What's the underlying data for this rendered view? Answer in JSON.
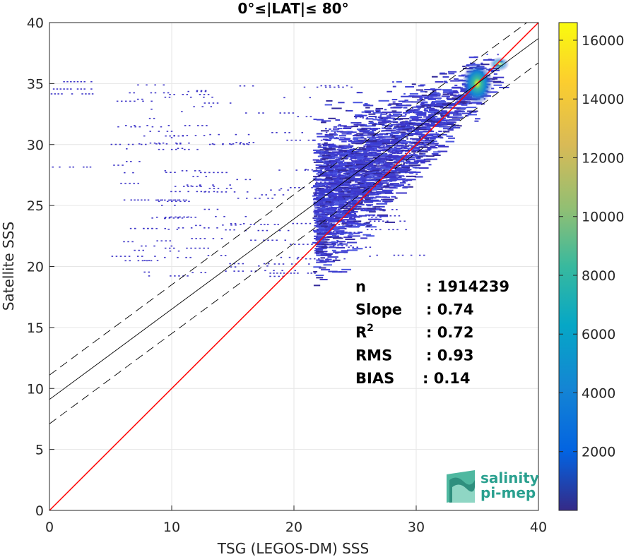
{
  "chart_data": {
    "type": "heatmap",
    "title": "0°≤|LAT|≤ 80°",
    "xlabel": "TSG (LEGOS-DM) SSS",
    "ylabel": "Satellite SSS",
    "xlim": [
      0,
      40
    ],
    "ylim": [
      0,
      40
    ],
    "xticks": [
      "0",
      "10",
      "20",
      "30",
      "40"
    ],
    "yticks": [
      "0",
      "5",
      "10",
      "15",
      "20",
      "25",
      "30",
      "35",
      "40"
    ],
    "grid": true,
    "colorbar": {
      "range": [
        0,
        16600
      ],
      "ticks": [
        "2000",
        "4000",
        "6000",
        "8000",
        "10000",
        "12000",
        "14000",
        "16000"
      ],
      "colormap": "parula"
    },
    "density_peak": {
      "x": 35,
      "y": 35
    },
    "lines": [
      {
        "kind": "one-to-one",
        "slope": 1,
        "intercept": 0,
        "color": "#ff0000"
      },
      {
        "kind": "fit",
        "slope": 0.74,
        "intercept": 9.1,
        "color": "#000000"
      },
      {
        "kind": "fit-upper",
        "slope": 0.74,
        "intercept": 11.1,
        "color": "#000000",
        "dash": true
      },
      {
        "kind": "fit-lower",
        "slope": 0.74,
        "intercept": 7.1,
        "color": "#000000",
        "dash": true
      }
    ],
    "stats": [
      {
        "label": "n",
        "value": ": 1914239"
      },
      {
        "label": "Slope",
        "value": ": 0.74"
      },
      {
        "label": "R",
        "sup": "2",
        "value": ": 0.72"
      },
      {
        "label": "RMS",
        "value": ": 0.93"
      },
      {
        "label": "BIAS",
        "value": ": 0.14"
      }
    ]
  },
  "logo": {
    "line1": "salinity",
    "line2": "pi-mep"
  }
}
